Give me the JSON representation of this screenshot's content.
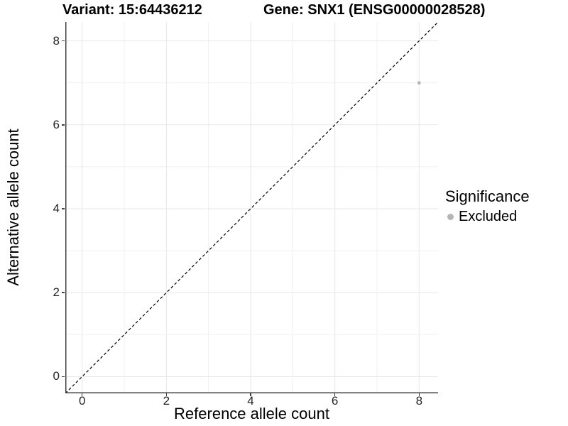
{
  "chart_data": {
    "type": "scatter",
    "title_left": "Variant: 15:64436212",
    "title_right": "Gene: SNX1 (ENSG00000028528)",
    "xlabel": "Reference allele count",
    "ylabel": "Alternative allele count",
    "xlim": [
      -0.4,
      8.45
    ],
    "ylim": [
      -0.4,
      8.45
    ],
    "xticks": [
      0,
      2,
      4,
      6,
      8
    ],
    "yticks": [
      0,
      2,
      4,
      6,
      8
    ],
    "minor_gridlines_x": [
      1,
      3,
      5,
      7
    ],
    "minor_gridlines_y": [
      1,
      3,
      5,
      7
    ],
    "grid": "on",
    "reference_line": {
      "equation": "y = x",
      "style": "dashed",
      "color": "#000000"
    },
    "series": [
      {
        "name": "Excluded",
        "color": "#b5b5b5",
        "point_radius": 2.4,
        "points": [
          {
            "x": 8,
            "y": 7
          }
        ]
      }
    ],
    "legend": {
      "title": "Significance",
      "position": "right",
      "items": [
        {
          "label": "Excluded",
          "color": "#b5b5b5"
        }
      ]
    }
  },
  "colors": {
    "background": "#ffffff",
    "axis_line": "#404040",
    "grid_major": "#e7e7e7",
    "grid_minor": "#f1f1f1",
    "tick_text": "#262626",
    "title_text": "#000000",
    "ref_line": "#000000"
  }
}
